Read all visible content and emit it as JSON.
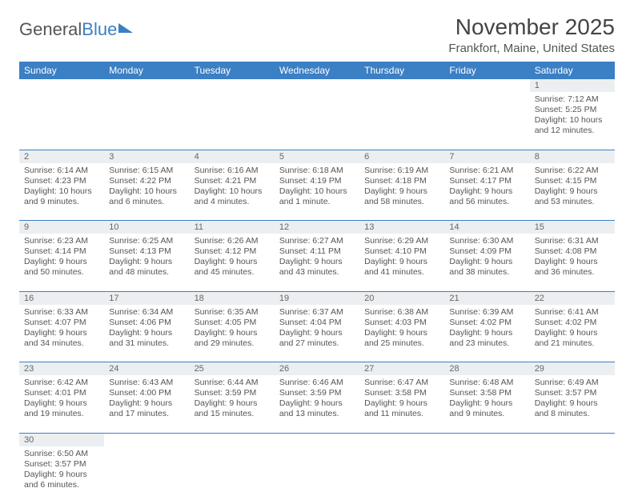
{
  "brand": {
    "part1": "General",
    "part2": "Blue"
  },
  "title": "November 2025",
  "location": "Frankfort, Maine, United States",
  "colors": {
    "header_bg": "#3b7fc4",
    "header_text": "#ffffff",
    "daynum_bg": "#eceff1",
    "border": "#3b7fc4",
    "body_text": "#555555"
  },
  "weekdays": [
    "Sunday",
    "Monday",
    "Tuesday",
    "Wednesday",
    "Thursday",
    "Friday",
    "Saturday"
  ],
  "weeks": [
    [
      null,
      null,
      null,
      null,
      null,
      null,
      {
        "n": "1",
        "sr": "Sunrise: 7:12 AM",
        "ss": "Sunset: 5:25 PM",
        "dl": "Daylight: 10 hours and 12 minutes."
      }
    ],
    [
      {
        "n": "2",
        "sr": "Sunrise: 6:14 AM",
        "ss": "Sunset: 4:23 PM",
        "dl": "Daylight: 10 hours and 9 minutes."
      },
      {
        "n": "3",
        "sr": "Sunrise: 6:15 AM",
        "ss": "Sunset: 4:22 PM",
        "dl": "Daylight: 10 hours and 6 minutes."
      },
      {
        "n": "4",
        "sr": "Sunrise: 6:16 AM",
        "ss": "Sunset: 4:21 PM",
        "dl": "Daylight: 10 hours and 4 minutes."
      },
      {
        "n": "5",
        "sr": "Sunrise: 6:18 AM",
        "ss": "Sunset: 4:19 PM",
        "dl": "Daylight: 10 hours and 1 minute."
      },
      {
        "n": "6",
        "sr": "Sunrise: 6:19 AM",
        "ss": "Sunset: 4:18 PM",
        "dl": "Daylight: 9 hours and 58 minutes."
      },
      {
        "n": "7",
        "sr": "Sunrise: 6:21 AM",
        "ss": "Sunset: 4:17 PM",
        "dl": "Daylight: 9 hours and 56 minutes."
      },
      {
        "n": "8",
        "sr": "Sunrise: 6:22 AM",
        "ss": "Sunset: 4:15 PM",
        "dl": "Daylight: 9 hours and 53 minutes."
      }
    ],
    [
      {
        "n": "9",
        "sr": "Sunrise: 6:23 AM",
        "ss": "Sunset: 4:14 PM",
        "dl": "Daylight: 9 hours and 50 minutes."
      },
      {
        "n": "10",
        "sr": "Sunrise: 6:25 AM",
        "ss": "Sunset: 4:13 PM",
        "dl": "Daylight: 9 hours and 48 minutes."
      },
      {
        "n": "11",
        "sr": "Sunrise: 6:26 AM",
        "ss": "Sunset: 4:12 PM",
        "dl": "Daylight: 9 hours and 45 minutes."
      },
      {
        "n": "12",
        "sr": "Sunrise: 6:27 AM",
        "ss": "Sunset: 4:11 PM",
        "dl": "Daylight: 9 hours and 43 minutes."
      },
      {
        "n": "13",
        "sr": "Sunrise: 6:29 AM",
        "ss": "Sunset: 4:10 PM",
        "dl": "Daylight: 9 hours and 41 minutes."
      },
      {
        "n": "14",
        "sr": "Sunrise: 6:30 AM",
        "ss": "Sunset: 4:09 PM",
        "dl": "Daylight: 9 hours and 38 minutes."
      },
      {
        "n": "15",
        "sr": "Sunrise: 6:31 AM",
        "ss": "Sunset: 4:08 PM",
        "dl": "Daylight: 9 hours and 36 minutes."
      }
    ],
    [
      {
        "n": "16",
        "sr": "Sunrise: 6:33 AM",
        "ss": "Sunset: 4:07 PM",
        "dl": "Daylight: 9 hours and 34 minutes."
      },
      {
        "n": "17",
        "sr": "Sunrise: 6:34 AM",
        "ss": "Sunset: 4:06 PM",
        "dl": "Daylight: 9 hours and 31 minutes."
      },
      {
        "n": "18",
        "sr": "Sunrise: 6:35 AM",
        "ss": "Sunset: 4:05 PM",
        "dl": "Daylight: 9 hours and 29 minutes."
      },
      {
        "n": "19",
        "sr": "Sunrise: 6:37 AM",
        "ss": "Sunset: 4:04 PM",
        "dl": "Daylight: 9 hours and 27 minutes."
      },
      {
        "n": "20",
        "sr": "Sunrise: 6:38 AM",
        "ss": "Sunset: 4:03 PM",
        "dl": "Daylight: 9 hours and 25 minutes."
      },
      {
        "n": "21",
        "sr": "Sunrise: 6:39 AM",
        "ss": "Sunset: 4:02 PM",
        "dl": "Daylight: 9 hours and 23 minutes."
      },
      {
        "n": "22",
        "sr": "Sunrise: 6:41 AM",
        "ss": "Sunset: 4:02 PM",
        "dl": "Daylight: 9 hours and 21 minutes."
      }
    ],
    [
      {
        "n": "23",
        "sr": "Sunrise: 6:42 AM",
        "ss": "Sunset: 4:01 PM",
        "dl": "Daylight: 9 hours and 19 minutes."
      },
      {
        "n": "24",
        "sr": "Sunrise: 6:43 AM",
        "ss": "Sunset: 4:00 PM",
        "dl": "Daylight: 9 hours and 17 minutes."
      },
      {
        "n": "25",
        "sr": "Sunrise: 6:44 AM",
        "ss": "Sunset: 3:59 PM",
        "dl": "Daylight: 9 hours and 15 minutes."
      },
      {
        "n": "26",
        "sr": "Sunrise: 6:46 AM",
        "ss": "Sunset: 3:59 PM",
        "dl": "Daylight: 9 hours and 13 minutes."
      },
      {
        "n": "27",
        "sr": "Sunrise: 6:47 AM",
        "ss": "Sunset: 3:58 PM",
        "dl": "Daylight: 9 hours and 11 minutes."
      },
      {
        "n": "28",
        "sr": "Sunrise: 6:48 AM",
        "ss": "Sunset: 3:58 PM",
        "dl": "Daylight: 9 hours and 9 minutes."
      },
      {
        "n": "29",
        "sr": "Sunrise: 6:49 AM",
        "ss": "Sunset: 3:57 PM",
        "dl": "Daylight: 9 hours and 8 minutes."
      }
    ],
    [
      {
        "n": "30",
        "sr": "Sunrise: 6:50 AM",
        "ss": "Sunset: 3:57 PM",
        "dl": "Daylight: 9 hours and 6 minutes."
      },
      null,
      null,
      null,
      null,
      null,
      null
    ]
  ]
}
